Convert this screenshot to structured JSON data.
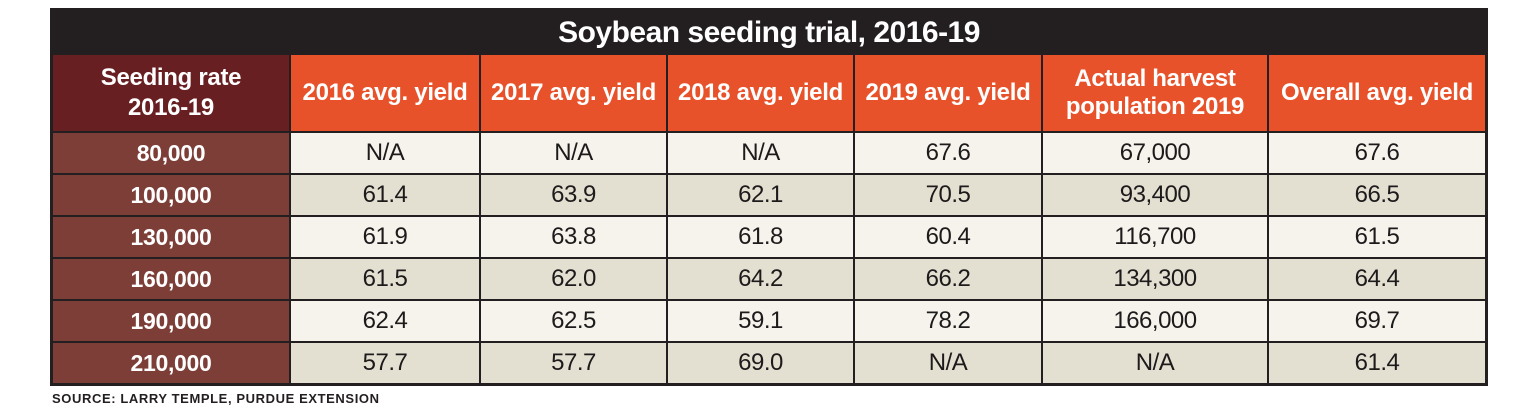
{
  "table": {
    "title": "Soybean seeding trial, 2016-19",
    "source": "SOURCE: LARRY TEMPLE, PURDUE EXTENSION"
  },
  "chart_data": {
    "type": "table",
    "title": "Soybean seeding trial, 2016-19",
    "columns": [
      "Seeding rate\n2016-19",
      "2016 avg. yield",
      "2017 avg. yield",
      "2018 avg. yield",
      "2019 avg. yield",
      "Actual harvest population 2019",
      "Overall avg. yield"
    ],
    "rows": [
      [
        "80,000",
        "N/A",
        "N/A",
        "N/A",
        "67.6",
        "67,000",
        "67.6"
      ],
      [
        "100,000",
        "61.4",
        "63.9",
        "62.1",
        "70.5",
        "93,400",
        "66.5"
      ],
      [
        "130,000",
        "61.9",
        "63.8",
        "61.8",
        "60.4",
        "116,700",
        "61.5"
      ],
      [
        "160,000",
        "61.5",
        "62.0",
        "64.2",
        "66.2",
        "134,300",
        "64.4"
      ],
      [
        "190,000",
        "62.4",
        "62.5",
        "59.1",
        "78.2",
        "166,000",
        "69.7"
      ],
      [
        "210,000",
        "57.7",
        "57.7",
        "69.0",
        "N/A",
        "N/A",
        "61.4"
      ]
    ],
    "source": "SOURCE: LARRY TEMPLE, PURDUE EXTENSION",
    "colors": {
      "title_bar": "#231F20",
      "column_header": "#E8522A",
      "corner_header": "#681F21",
      "row_header": "#7D3E38",
      "row_light": "#F5F3EB",
      "row_tan": "#E4E0D1",
      "border": "#231F20"
    }
  }
}
